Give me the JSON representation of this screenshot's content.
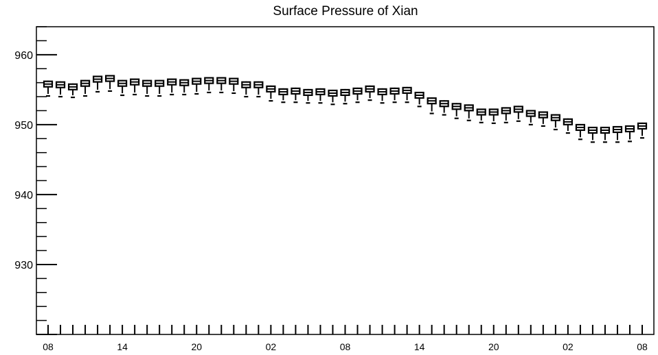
{
  "chart_data": {
    "type": "box",
    "title": "Surface Pressure of Xian",
    "xlabel": "",
    "ylabel": "",
    "ylim": [
      920,
      964
    ],
    "y_ticks": [
      930,
      940,
      950,
      960
    ],
    "x_tick_labels": [
      "08",
      "14",
      "20",
      "02",
      "08",
      "14",
      "20",
      "02",
      "08"
    ],
    "x_tick_positions": [
      0,
      6,
      12,
      18,
      24,
      30,
      36,
      42,
      48
    ],
    "grid": false,
    "series": [
      {
        "x": [
          0,
          1,
          2,
          3,
          4,
          5,
          6,
          7,
          8,
          9,
          10,
          11,
          12,
          13,
          14,
          15,
          16,
          17,
          18,
          19,
          20,
          21,
          22,
          23,
          24,
          25,
          26,
          27,
          28,
          29,
          30,
          31,
          32,
          33,
          34,
          35,
          36,
          37,
          38,
          39,
          40,
          41,
          42,
          43,
          44,
          45,
          46,
          47,
          48
        ],
        "median": [
          955.8,
          955.7,
          955.4,
          955.9,
          956.5,
          956.6,
          955.9,
          956.1,
          955.9,
          955.9,
          956.1,
          956.0,
          956.2,
          956.3,
          956.3,
          956.2,
          955.7,
          955.7,
          955.1,
          954.7,
          954.8,
          954.6,
          954.7,
          954.5,
          954.6,
          954.8,
          955.1,
          954.7,
          954.8,
          954.9,
          954.2,
          953.4,
          953.0,
          952.6,
          952.4,
          951.8,
          951.8,
          952.0,
          952.2,
          951.6,
          951.4,
          951.0,
          950.4,
          949.6,
          949.2,
          949.2,
          949.3,
          949.4,
          949.8
        ],
        "min": [
          954.1,
          954.0,
          953.9,
          954.1,
          954.7,
          954.8,
          954.2,
          954.3,
          954.1,
          954.1,
          954.3,
          954.3,
          954.4,
          954.6,
          954.6,
          954.5,
          954.0,
          954.0,
          953.4,
          953.2,
          953.2,
          953.1,
          953.1,
          952.9,
          953.0,
          953.2,
          953.5,
          953.1,
          953.2,
          953.2,
          952.6,
          951.6,
          951.4,
          950.9,
          950.6,
          950.3,
          950.2,
          950.3,
          950.5,
          950.0,
          949.8,
          949.3,
          948.8,
          947.9,
          947.5,
          947.5,
          947.5,
          947.6,
          948.1
        ]
      }
    ]
  }
}
